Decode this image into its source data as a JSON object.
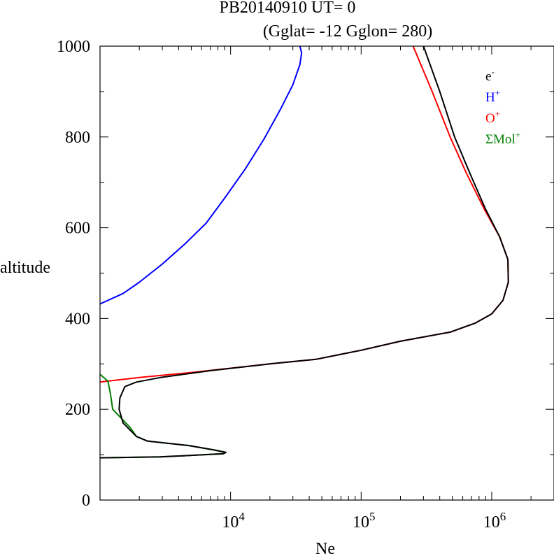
{
  "chart_data": {
    "type": "line",
    "title": "PB20140910   UT=  0",
    "subtitle": "(Gglat= -12   Gglon=  280)",
    "xlabel": "Ne",
    "ylabel": "altitude",
    "x_scale": "log",
    "xlim": [
      1000,
      3000000
    ],
    "ylim": [
      0,
      1000
    ],
    "x_ticks": [
      {
        "value": 10000,
        "base": "10",
        "exp": "4"
      },
      {
        "value": 100000,
        "base": "10",
        "exp": "5"
      },
      {
        "value": 1000000,
        "base": "10",
        "exp": "6"
      }
    ],
    "y_ticks": [
      "0",
      "200",
      "400",
      "600",
      "800",
      "1000"
    ],
    "legend_position": "top-right",
    "series": [
      {
        "name": "e-",
        "label_base": "e",
        "label_sup": "-",
        "color": "#000000",
        "points": [
          [
            1000,
            93
          ],
          [
            2900,
            95
          ],
          [
            8800,
            102
          ],
          [
            9200,
            105
          ],
          [
            7600,
            110
          ],
          [
            4800,
            120
          ],
          [
            2300,
            130
          ],
          [
            1900,
            140
          ],
          [
            1500,
            170
          ],
          [
            1400,
            200
          ],
          [
            1420,
            225
          ],
          [
            1550,
            250
          ],
          [
            1900,
            260
          ],
          [
            2900,
            270
          ],
          [
            7000,
            285
          ],
          [
            20000,
            300
          ],
          [
            45000,
            310
          ],
          [
            100000,
            330
          ],
          [
            200000,
            350
          ],
          [
            480000,
            370
          ],
          [
            750000,
            390
          ],
          [
            1000000,
            410
          ],
          [
            1220000,
            440
          ],
          [
            1340000,
            480
          ],
          [
            1330000,
            530
          ],
          [
            1150000,
            580
          ],
          [
            900000,
            640
          ],
          [
            680000,
            720
          ],
          [
            520000,
            800
          ],
          [
            400000,
            900
          ],
          [
            300000,
            1000
          ]
        ]
      },
      {
        "name": "H+",
        "label_base": "H",
        "label_sup": "+",
        "color": "#0000ff",
        "points": [
          [
            1000,
            432
          ],
          [
            1500,
            455
          ],
          [
            2000,
            480
          ],
          [
            3000,
            520
          ],
          [
            4500,
            565
          ],
          [
            6500,
            610
          ],
          [
            9000,
            665
          ],
          [
            13000,
            730
          ],
          [
            18000,
            795
          ],
          [
            24000,
            860
          ],
          [
            30000,
            915
          ],
          [
            34000,
            960
          ],
          [
            35000,
            985
          ],
          [
            34000,
            1000
          ]
        ]
      },
      {
        "name": "O+",
        "label_base": "O",
        "label_sup": "+",
        "color": "#ff0000",
        "points": [
          [
            1000,
            260
          ],
          [
            2000,
            270
          ],
          [
            5000,
            281
          ],
          [
            20000,
            300
          ],
          [
            45000,
            310
          ],
          [
            100000,
            330
          ],
          [
            200000,
            350
          ],
          [
            480000,
            370
          ],
          [
            750000,
            390
          ],
          [
            1000000,
            410
          ],
          [
            1220000,
            440
          ],
          [
            1340000,
            480
          ],
          [
            1330000,
            530
          ],
          [
            1150000,
            580
          ],
          [
            880000,
            640
          ],
          [
            640000,
            720
          ],
          [
            480000,
            800
          ],
          [
            350000,
            900
          ],
          [
            250000,
            1000
          ]
        ]
      },
      {
        "name": "ΣMol+",
        "label_base": "ΣMol",
        "label_sup": "+",
        "color": "#008000",
        "points": [
          [
            1000,
            277
          ],
          [
            1150,
            262
          ],
          [
            1200,
            235
          ],
          [
            1250,
            200
          ],
          [
            1700,
            160
          ],
          [
            1900,
            140
          ],
          [
            2300,
            130
          ],
          [
            4800,
            120
          ],
          [
            7600,
            110
          ],
          [
            9200,
            105
          ],
          [
            8800,
            102
          ],
          [
            2900,
            95
          ],
          [
            1000,
            93
          ]
        ]
      }
    ]
  }
}
